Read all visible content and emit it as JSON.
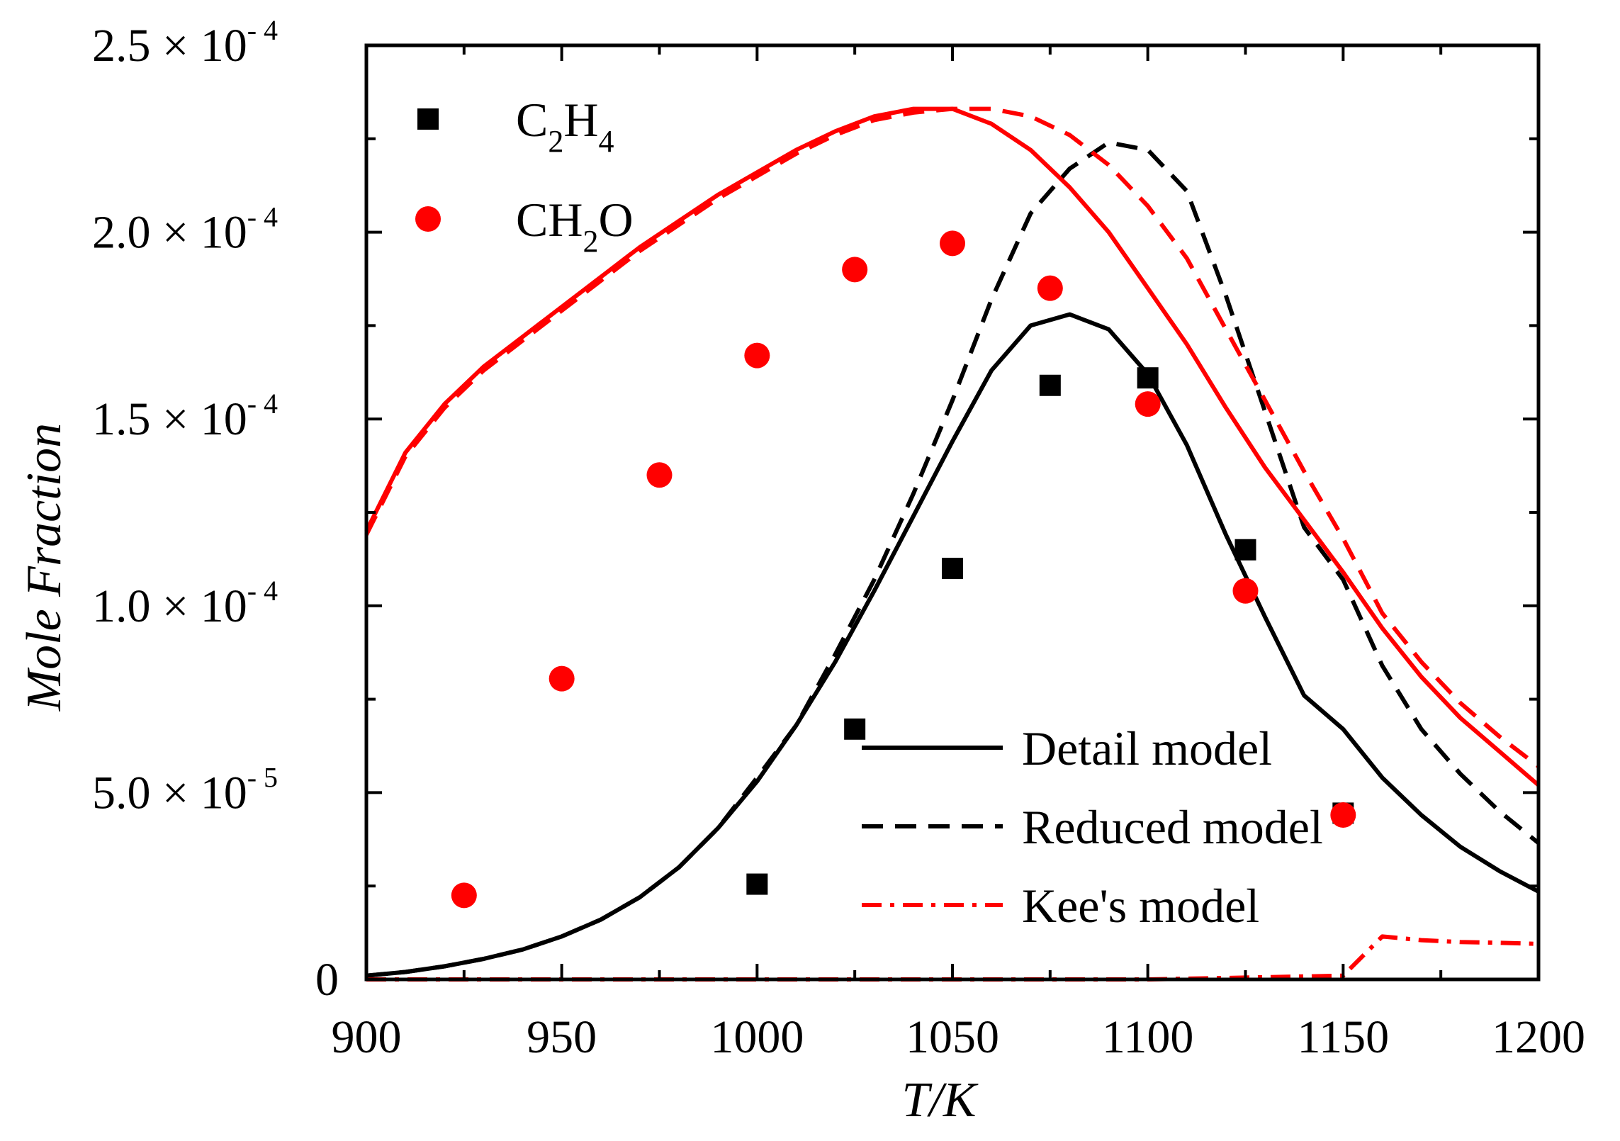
{
  "chart_data": {
    "type": "line",
    "title": "",
    "xlabel": "T/K",
    "ylabel": "Mole Fraction",
    "xlim": [
      900,
      1200
    ],
    "ylim": [
      0,
      0.00025
    ],
    "x_ticks": [
      900,
      950,
      1000,
      1050,
      1100,
      1150,
      1200
    ],
    "x_tick_labels": [
      "900",
      "950",
      "1000",
      "1050",
      "1100",
      "1150",
      "1200"
    ],
    "y_ticks": [
      {
        "value": 0,
        "mantissa": "0",
        "exp": ""
      },
      {
        "value": 5e-05,
        "mantissa": "5.0",
        "times": "×",
        "base": "10",
        "exp": "- 5"
      },
      {
        "value": 0.0001,
        "mantissa": "1.0",
        "times": "×",
        "base": "10",
        "exp": "- 4"
      },
      {
        "value": 0.00015,
        "mantissa": "1.5",
        "times": "×",
        "base": "10",
        "exp": "- 4"
      },
      {
        "value": 0.0002,
        "mantissa": "2.0",
        "times": "×",
        "base": "10",
        "exp": "- 4"
      },
      {
        "value": 0.00025,
        "mantissa": "2.5",
        "times": "×",
        "base": "10",
        "exp": "- 4"
      }
    ],
    "grid": false,
    "colors": {
      "black": "#000000",
      "red": "#ff0000"
    },
    "legend_species": {
      "placement": "top-left",
      "entries": [
        {
          "base": "C",
          "sub1": "2",
          "mid": "H",
          "sub2": "4",
          "end": "",
          "marker": "square",
          "color": "#000000"
        },
        {
          "base": "CH",
          "sub1": "2",
          "mid": "O",
          "sub2": "",
          "end": "",
          "marker": "circle",
          "color": "#ff0000"
        }
      ]
    },
    "legend_models": {
      "placement": "bottom-right",
      "entries": [
        {
          "label": "Detail model",
          "style": "solid",
          "color": "#000000"
        },
        {
          "label": "Reduced model",
          "style": "dashed",
          "color": "#000000"
        },
        {
          "label": "Kee's model",
          "style": "dashdot",
          "color": "#ff0000"
        }
      ]
    },
    "scatter_series": [
      {
        "name": "C2H4",
        "marker": "square",
        "color": "#000000",
        "x": [
          1000,
          1025,
          1050,
          1075,
          1100,
          1125,
          1150
        ],
        "y": [
          2.55e-05,
          6.7e-05,
          0.00011,
          0.000159,
          0.000161,
          0.000115,
          4.45e-05
        ]
      },
      {
        "name": "CH2O",
        "marker": "circle",
        "color": "#ff0000",
        "x": [
          925,
          950,
          975,
          1000,
          1025,
          1050,
          1075,
          1100,
          1125,
          1150
        ],
        "y": [
          2.25e-05,
          8.05e-05,
          0.000135,
          0.000167,
          0.00019,
          0.000197,
          0.000185,
          0.000154,
          0.000104,
          4.4e-05
        ]
      }
    ],
    "line_series": [
      {
        "name": "C2H4 Detail model",
        "color": "#000000",
        "style": "solid",
        "x": [
          900,
          910,
          920,
          930,
          940,
          950,
          960,
          970,
          980,
          990,
          1000,
          1010,
          1020,
          1030,
          1040,
          1050,
          1060,
          1070,
          1080,
          1090,
          1100,
          1110,
          1120,
          1130,
          1140,
          1150,
          1160,
          1170,
          1180,
          1190,
          1200
        ],
        "y": [
          1e-06,
          2e-06,
          3.5e-06,
          5.5e-06,
          8e-06,
          1.15e-05,
          1.6e-05,
          2.2e-05,
          3e-05,
          4.05e-05,
          5.3e-05,
          6.8e-05,
          8.5e-05,
          0.000104,
          0.000124,
          0.000144,
          0.000163,
          0.000175,
          0.000178,
          0.000174,
          0.000162,
          0.000143,
          0.000119,
          9.7e-05,
          7.6e-05,
          6.7e-05,
          5.4e-05,
          4.4e-05,
          3.55e-05,
          2.9e-05,
          2.35e-05
        ]
      },
      {
        "name": "C2H4 Reduced model",
        "color": "#000000",
        "style": "dashed",
        "x": [
          900,
          910,
          920,
          930,
          940,
          950,
          960,
          970,
          980,
          990,
          1000,
          1010,
          1020,
          1030,
          1040,
          1050,
          1060,
          1070,
          1080,
          1090,
          1100,
          1110,
          1120,
          1130,
          1140,
          1150,
          1160,
          1170,
          1180,
          1190,
          1200
        ],
        "y": [
          1e-06,
          2e-06,
          3.5e-06,
          5.5e-06,
          8e-06,
          1.15e-05,
          1.6e-05,
          2.2e-05,
          3e-05,
          4.05e-05,
          5.4e-05,
          6.8e-05,
          8.7e-05,
          0.000107,
          0.00013,
          0.000155,
          0.000182,
          0.000205,
          0.000217,
          0.000224,
          0.000222,
          0.000211,
          0.000183,
          0.000152,
          0.000121,
          0.000107,
          8.4e-05,
          6.7e-05,
          5.5e-05,
          4.5e-05,
          3.65e-05
        ]
      },
      {
        "name": "CH2O Detail model",
        "color": "#ff0000",
        "style": "solid",
        "x": [
          900,
          910,
          920,
          930,
          940,
          950,
          960,
          970,
          980,
          990,
          1000,
          1010,
          1020,
          1030,
          1040,
          1050,
          1060,
          1070,
          1080,
          1090,
          1100,
          1110,
          1120,
          1130,
          1140,
          1150,
          1160,
          1170,
          1180,
          1190,
          1200
        ],
        "y": [
          0.00012,
          0.000141,
          0.000154,
          0.000164,
          0.000172,
          0.00018,
          0.000188,
          0.000196,
          0.000203,
          0.00021,
          0.000216,
          0.000222,
          0.000227,
          0.000231,
          0.000233,
          0.000233,
          0.000229,
          0.000222,
          0.000212,
          0.0002,
          0.000185,
          0.00017,
          0.000153,
          0.000137,
          0.000123,
          0.000109,
          9.4e-05,
          8.1e-05,
          7e-05,
          6.1e-05,
          5.2e-05
        ]
      },
      {
        "name": "CH2O Reduced model",
        "color": "#ff0000",
        "style": "dashed",
        "x": [
          900,
          910,
          920,
          930,
          940,
          950,
          960,
          970,
          980,
          990,
          1000,
          1010,
          1020,
          1030,
          1040,
          1050,
          1060,
          1070,
          1080,
          1090,
          1100,
          1110,
          1120,
          1130,
          1140,
          1150,
          1160,
          1170,
          1180,
          1190,
          1200
        ],
        "y": [
          0.000119,
          0.00014,
          0.000153,
          0.000163,
          0.000171,
          0.000179,
          0.000187,
          0.000195,
          0.000202,
          0.000209,
          0.000215,
          0.000221,
          0.000226,
          0.00023,
          0.000232,
          0.000233,
          0.000233,
          0.000231,
          0.000226,
          0.000218,
          0.000207,
          0.000193,
          0.000174,
          0.000155,
          0.000136,
          0.000118,
          9.8e-05,
          8.5e-05,
          7.4e-05,
          6.5e-05,
          5.7e-05
        ]
      },
      {
        "name": "CH2O Kee's model",
        "color": "#ff0000",
        "style": "dashdot",
        "x": [
          900,
          950,
          1000,
          1050,
          1100,
          1125,
          1150,
          1160,
          1170,
          1180,
          1190,
          1200
        ],
        "y": [
          0,
          0,
          0,
          0,
          0,
          5e-07,
          1e-06,
          1.15e-05,
          1.05e-05,
          1e-05,
          9.8e-06,
          9.5e-06
        ]
      }
    ]
  }
}
